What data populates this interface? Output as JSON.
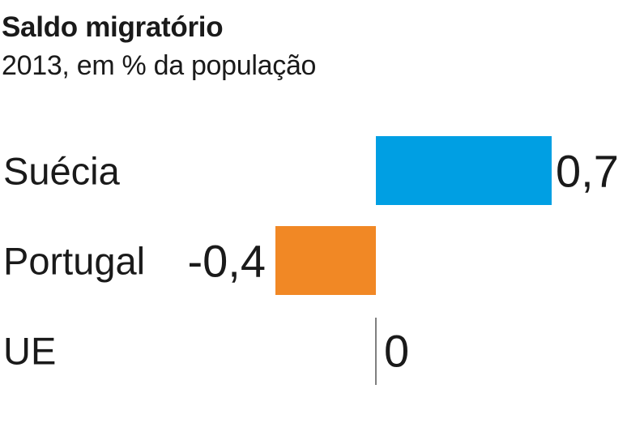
{
  "title": "Saldo migratório",
  "subtitle": "2013, em % da população",
  "colors": {
    "positive": "#009fe3",
    "negative": "#f18825",
    "zero_line": "#555555"
  },
  "chart_data": {
    "type": "bar",
    "orientation": "horizontal",
    "title": "Saldo migratório",
    "subtitle": "2013, em % da população",
    "categories": [
      "Suécia",
      "Portugal",
      "UE"
    ],
    "values": [
      0.7,
      -0.4,
      0
    ],
    "value_labels": [
      "0,7",
      "-0,4",
      "0"
    ],
    "xlabel": "",
    "ylabel": "",
    "grid": false,
    "legend": "none"
  }
}
